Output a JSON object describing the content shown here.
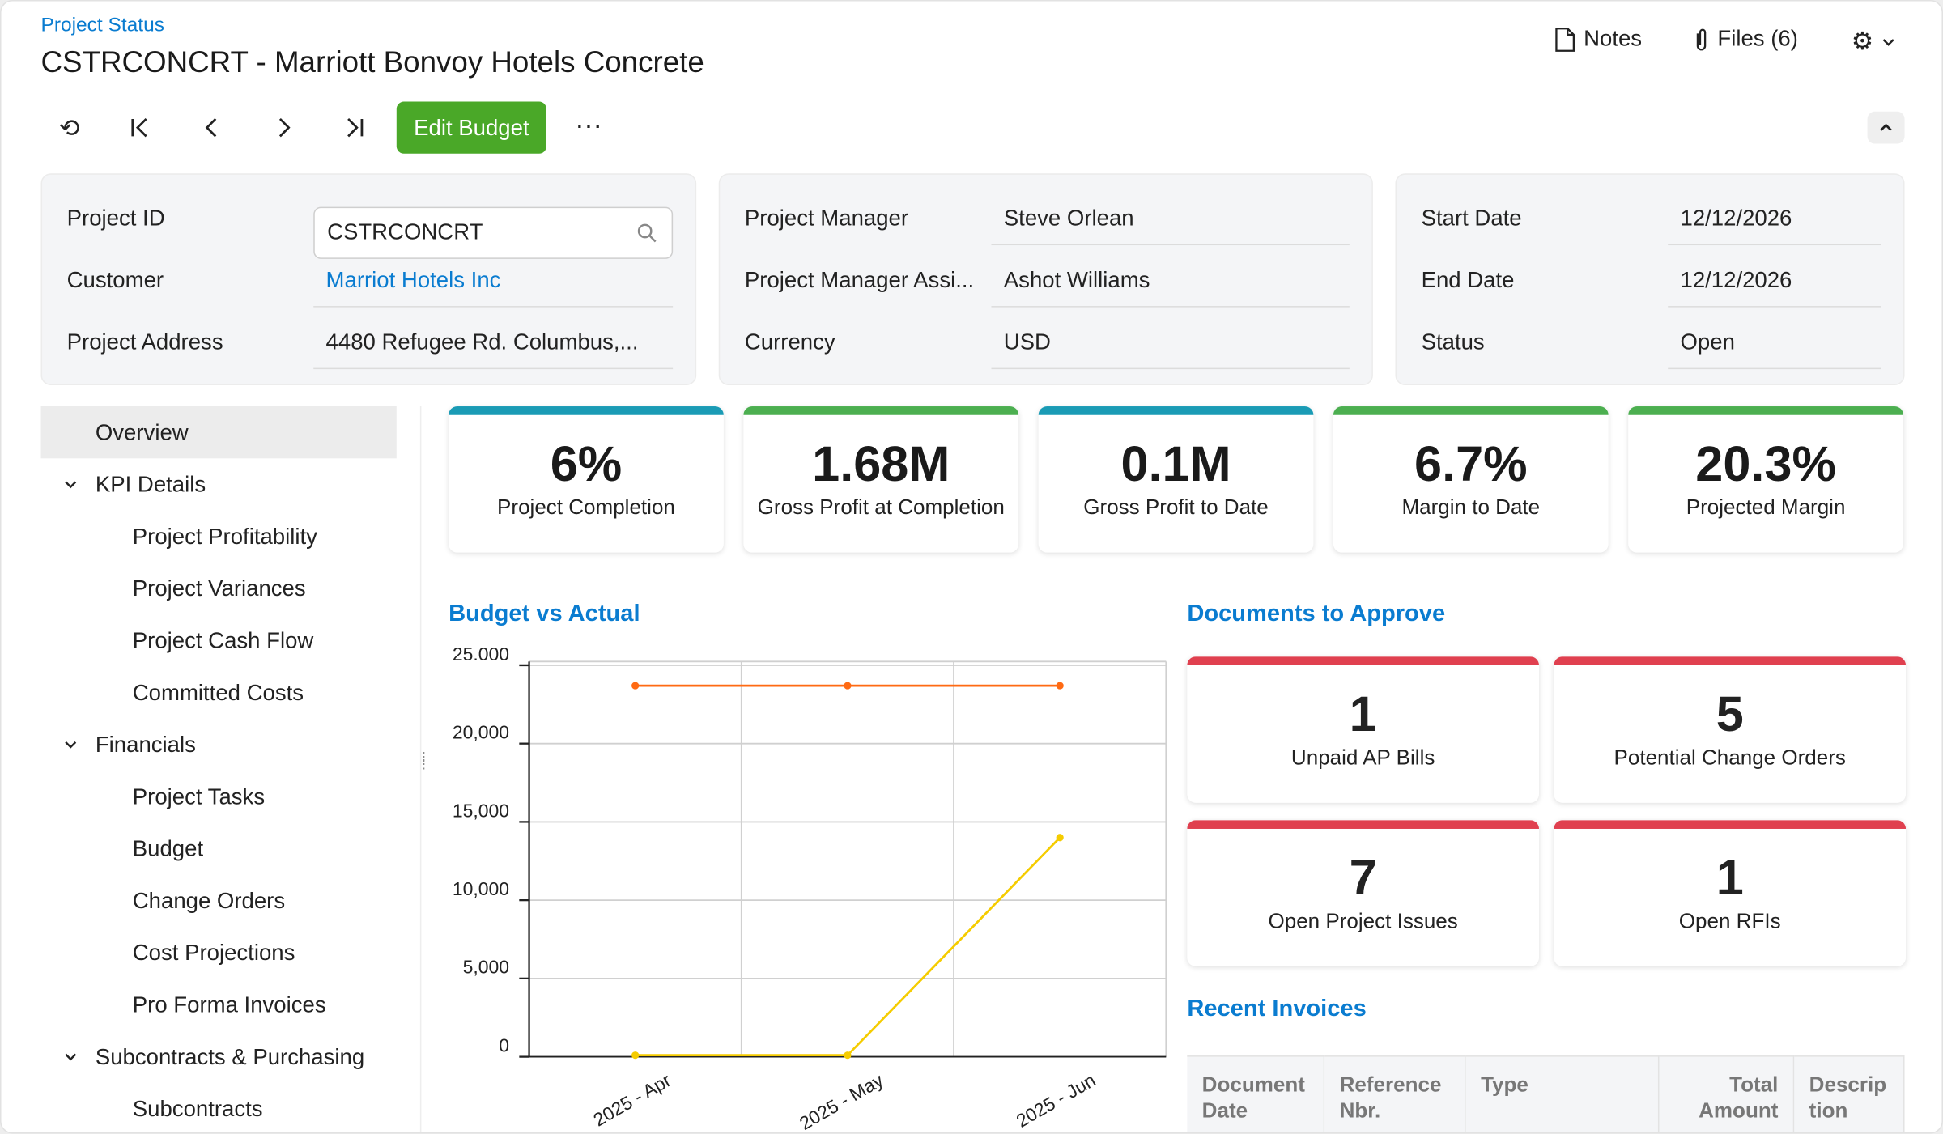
{
  "header": {
    "breadcrumb": "Project Status",
    "title": "CSTRCONCRT - Marriott Bonvoy Hotels Concrete",
    "notes_label": "Notes",
    "files_label": "Files (6)"
  },
  "toolbar": {
    "edit_budget_label": "Edit Budget",
    "more_label": "···"
  },
  "summary": {
    "card1": [
      {
        "label": "Project ID",
        "value": "CSTRCONCRT"
      },
      {
        "label": "Customer",
        "value": "Marriot Hotels Inc"
      },
      {
        "label": "Project Address",
        "value": "4480 Refugee Rd. Columbus,..."
      }
    ],
    "card2": [
      {
        "label": "Project Manager",
        "value": "Steve Orlean"
      },
      {
        "label": "Project Manager Assi...",
        "value": "Ashot Williams"
      },
      {
        "label": "Currency",
        "value": "USD"
      }
    ],
    "card3": [
      {
        "label": "Start Date",
        "value": "12/12/2026"
      },
      {
        "label": "End Date",
        "value": "12/12/2026"
      },
      {
        "label": "Status",
        "value": "Open"
      }
    ]
  },
  "sidebar": {
    "items": [
      {
        "label": "Overview",
        "level": 0,
        "selected": true
      },
      {
        "label": "KPI Details",
        "level": 0,
        "expandable": true
      },
      {
        "label": "Project Profitability",
        "level": 1
      },
      {
        "label": "Project Variances",
        "level": 1
      },
      {
        "label": "Project Cash Flow",
        "level": 1
      },
      {
        "label": "Committed Costs",
        "level": 1
      },
      {
        "label": "Financials",
        "level": 0,
        "expandable": true
      },
      {
        "label": "Project Tasks",
        "level": 1
      },
      {
        "label": "Budget",
        "level": 1
      },
      {
        "label": "Change Orders",
        "level": 1
      },
      {
        "label": "Cost Projections",
        "level": 1
      },
      {
        "label": "Pro Forma Invoices",
        "level": 1
      },
      {
        "label": "Subcontracts & Purchasing",
        "level": 0,
        "expandable": true
      },
      {
        "label": "Subcontracts",
        "level": 1
      }
    ]
  },
  "kpis": [
    {
      "value": "6%",
      "label": "Project Completion",
      "color": "#1a9bb5"
    },
    {
      "value": "1.68M",
      "label": "Gross Profit at Completion",
      "color": "#4caf50"
    },
    {
      "value": "0.1M",
      "label": "Gross Profit to Date",
      "color": "#1a9bb5"
    },
    {
      "value": "6.7%",
      "label": "Margin to Date",
      "color": "#4caf50"
    },
    {
      "value": "20.3%",
      "label": "Projected Margin",
      "color": "#4caf50"
    }
  ],
  "budget_section": {
    "title": "Budget vs Actual"
  },
  "chart_data": {
    "type": "line",
    "categories": [
      "2025 - Apr",
      "2025 - May",
      "2025 - Jun"
    ],
    "series": [
      {
        "values": [
          23700,
          23700,
          23700
        ],
        "color": "#ff6a13"
      },
      {
        "values": [
          100,
          100,
          14000
        ],
        "color": "#f5cc00"
      }
    ],
    "ylim": [
      0,
      25000
    ],
    "yticks": [
      0,
      5000,
      10000,
      15000,
      20000,
      25000
    ],
    "ytick_labels": [
      "0",
      "5,000",
      "10,000",
      "15,000",
      "20,000",
      "25.000"
    ],
    "grid": true
  },
  "documents": {
    "title": "Documents to Approve",
    "items": [
      {
        "value": "1",
        "label": "Unpaid AP Bills"
      },
      {
        "value": "5",
        "label": "Potential Change Orders"
      },
      {
        "value": "7",
        "label": "Open Project Issues"
      },
      {
        "value": "1",
        "label": "Open RFIs"
      }
    ],
    "accent": "#e0404f"
  },
  "invoices": {
    "title": "Recent Invoices",
    "columns": [
      "Document Date",
      "Reference Nbr.",
      "Type",
      "Total Amount",
      "Descrip tion"
    ]
  }
}
